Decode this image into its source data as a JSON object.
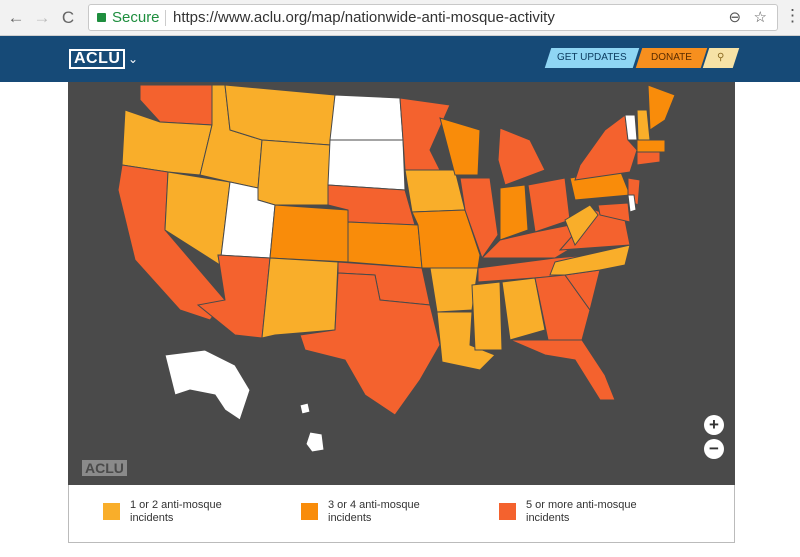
{
  "browser": {
    "back": "←",
    "forward": "→",
    "reload": "C",
    "secure": "Secure",
    "url": "https://www.aclu.org/map/nationwide-anti-mosque-activity",
    "zoom_icon": "⊖",
    "star_icon": "☆",
    "menu_icon": "⋮"
  },
  "header": {
    "logo": "ACLU",
    "chevron": "⌄",
    "buttons": [
      "GET UPDATES",
      "DONATE",
      "⚲"
    ]
  },
  "map": {
    "watermark": "ACLU",
    "zoom_in": "+",
    "zoom_out": "−"
  },
  "legend": [
    {
      "label": "1 or 2 anti-mosque incidents",
      "color": "#f9ae2a"
    },
    {
      "label": "3 or 4 anti-mosque incidents",
      "color": "#f98c0a"
    },
    {
      "label": "5 or more anti-mosque incidents",
      "color": "#f4622e"
    }
  ]
}
